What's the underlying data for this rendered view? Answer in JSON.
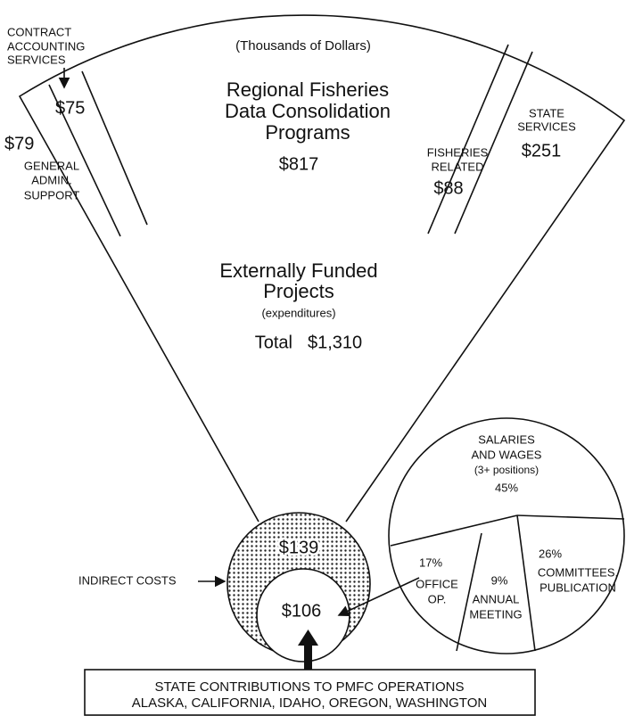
{
  "header": {
    "subtitle": "(Thousands of Dollars)"
  },
  "fan": {
    "contract_accounting": {
      "label": [
        "CONTRACT",
        "ACCOUNTING",
        "SERVICES"
      ],
      "amount": "$75"
    },
    "general_admin": {
      "label": [
        "GENERAL",
        "ADMIN.",
        "SUPPORT"
      ],
      "amount": "$79"
    },
    "regional": {
      "label": [
        "Regional Fisheries",
        "Data Consolidation",
        "Programs"
      ],
      "amount": "$817"
    },
    "fisheries_related": {
      "label": [
        "FISHERIES",
        "RELATED"
      ],
      "amount": "$88"
    },
    "state_services": {
      "label": [
        "STATE",
        "SERVICES"
      ],
      "amount": "$251"
    },
    "total": {
      "label": [
        "Externally Funded",
        "Projects"
      ],
      "note": "(expenditures)",
      "total_label": "Total",
      "amount": "$1,310"
    }
  },
  "indirect": {
    "label": "INDIRECT COSTS",
    "amount": "$139"
  },
  "state_contribution": {
    "amount": "$106",
    "box": [
      "STATE CONTRIBUTIONS TO PMFC OPERATIONS",
      "ALASKA, CALIFORNIA, IDAHO, OREGON, WASHINGTON"
    ]
  },
  "pie": {
    "slices": [
      {
        "label": [
          "SALARIES",
          "AND WAGES",
          "(3+ positions)"
        ],
        "percent": "45%"
      },
      {
        "label": [
          "COMMITTEES,",
          "PUBLICATION"
        ],
        "percent": "26%"
      },
      {
        "label": [
          "ANNUAL",
          "MEETING"
        ],
        "percent": "9%"
      },
      {
        "label": [
          "OFFICE",
          "OP."
        ],
        "percent": "17%"
      }
    ]
  }
}
